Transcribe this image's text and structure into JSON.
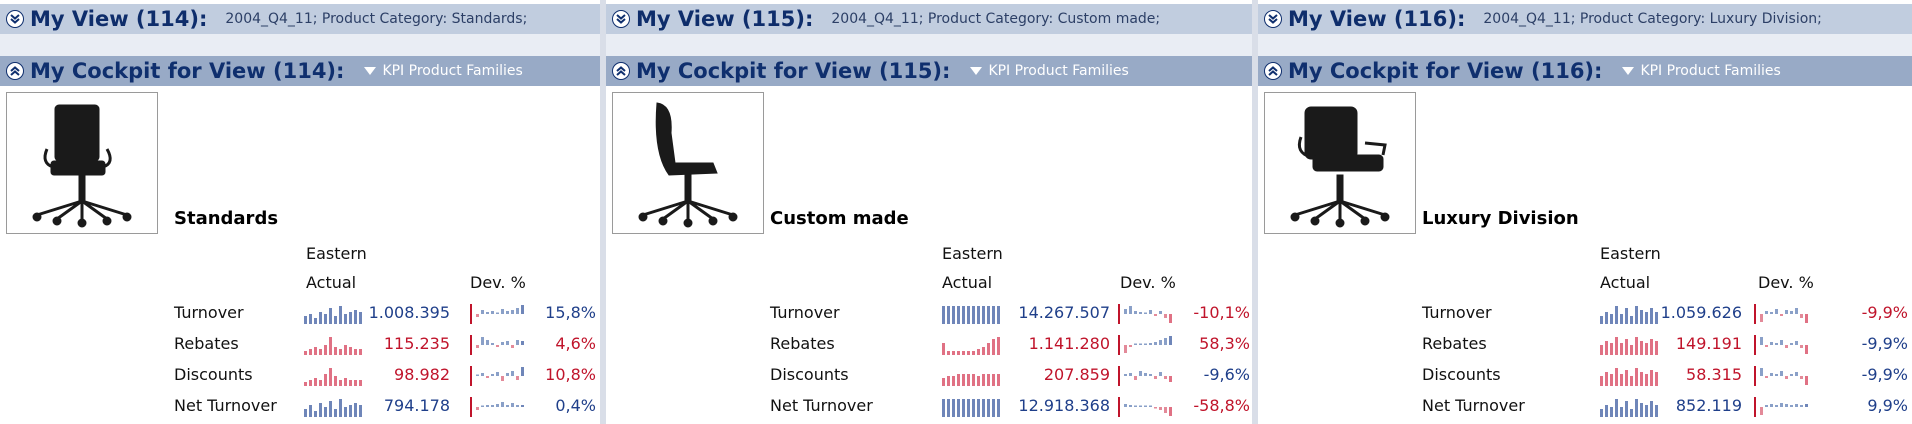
{
  "colors": {
    "view_bar": "#c1cddf",
    "cockpit_bar": "#98aac6",
    "title_text": "#0f2f6e",
    "positive_text": "#1f3f8a",
    "negative_text": "#c0142b",
    "spark_blue": "#6f86b9",
    "spark_red": "#e07184"
  },
  "icons": {
    "collapse": "double-chevron-down-icon",
    "expand": "double-chevron-up-icon",
    "dropdown": "caret-down-icon"
  },
  "panels": [
    {
      "view_title": "My View (114):",
      "view_info": "2004_Q4_11; Product Category: Standards;",
      "cockpit_title": "My Cockpit for View (114):",
      "dropdown_label": "KPI Product Families",
      "image_label": "chair-standards-image",
      "family": "Standards",
      "region": "Eastern",
      "col_actual": "Actual",
      "col_dev": "Dev. %",
      "rows": [
        {
          "label": "Turnover",
          "actual": "1.008.395",
          "dev": "15,8%",
          "actual_tone": "pos",
          "dev_tone": "pos",
          "spark_color": "blue",
          "bars": [
            0.4,
            0.5,
            0.3,
            0.6,
            0.5,
            0.8,
            0.4,
            0.9,
            0.5,
            0.6,
            0.7,
            0.6
          ],
          "devspark": [
            -0.3,
            0.4,
            0.2,
            0.3,
            0.1,
            0.5,
            0.3,
            0.4,
            0.6,
            0.9
          ]
        },
        {
          "label": "Rebates",
          "actual": "115.235",
          "dev": "4,6%",
          "actual_tone": "neg",
          "dev_tone": "neg",
          "spark_color": "red",
          "bars": [
            0.2,
            0.3,
            0.4,
            0.3,
            0.5,
            0.9,
            0.4,
            0.3,
            0.5,
            0.4,
            0.3,
            0.3
          ],
          "devspark": [
            -0.3,
            0.8,
            0.5,
            0.2,
            -0.2,
            0.3,
            0.4,
            -0.3,
            0.5,
            0.4
          ]
        },
        {
          "label": "Discounts",
          "actual": "98.982",
          "dev": "10,8%",
          "actual_tone": "neg",
          "dev_tone": "neg",
          "spark_color": "red",
          "bars": [
            0.2,
            0.3,
            0.4,
            0.3,
            0.6,
            0.9,
            0.5,
            0.3,
            0.4,
            0.3,
            0.3,
            0.3
          ],
          "devspark": [
            0.1,
            0.3,
            -0.2,
            0.2,
            0.4,
            -0.5,
            0.3,
            0.5,
            -0.4,
            0.9
          ]
        },
        {
          "label": "Net Turnover",
          "actual": "794.178",
          "dev": "0,4%",
          "actual_tone": "pos",
          "dev_tone": "pos",
          "spark_color": "blue",
          "bars": [
            0.4,
            0.6,
            0.3,
            0.7,
            0.5,
            0.8,
            0.4,
            0.9,
            0.5,
            0.6,
            0.7,
            0.6
          ],
          "devspark": [
            -0.3,
            0.1,
            0.2,
            0.2,
            0.3,
            0.5,
            0.2,
            0.4,
            0.2,
            0.2
          ]
        }
      ]
    },
    {
      "view_title": "My View (115):",
      "view_info": "2004_Q4_11; Product Category: Custom made;",
      "cockpit_title": "My Cockpit for View (115):",
      "dropdown_label": "KPI Product Families",
      "image_label": "chair-custom-made-image",
      "family": "Custom made",
      "region": "Eastern",
      "col_actual": "Actual",
      "col_dev": "Dev. %",
      "rows": [
        {
          "label": "Turnover",
          "actual": "14.267.507",
          "dev": "-10,1%",
          "actual_tone": "pos",
          "dev_tone": "neg",
          "spark_color": "blue",
          "bars": [
            0.9,
            0.9,
            0.9,
            0.9,
            0.9,
            0.9,
            0.9,
            0.9,
            0.9,
            0.9,
            0.9,
            0.9
          ],
          "devspark": [
            0.5,
            0.8,
            0.3,
            0.2,
            0.1,
            0.4,
            -0.2,
            0.3,
            -0.4,
            -0.9
          ]
        },
        {
          "label": "Rebates",
          "actual": "1.141.280",
          "dev": "58,3%",
          "actual_tone": "neg",
          "dev_tone": "neg",
          "spark_color": "red",
          "bars": [
            0.6,
            0.2,
            0.2,
            0.2,
            0.2,
            0.2,
            0.2,
            0.3,
            0.4,
            0.6,
            0.8,
            0.9
          ],
          "devspark": [
            -0.8,
            -0.2,
            0.1,
            0.1,
            0.1,
            0.2,
            0.3,
            0.5,
            0.7,
            0.9
          ]
        },
        {
          "label": "Discounts",
          "actual": "207.859",
          "dev": "-9,6%",
          "actual_tone": "neg",
          "dev_tone": "pos",
          "spark_color": "red",
          "bars": [
            0.4,
            0.5,
            0.5,
            0.6,
            0.6,
            0.6,
            0.6,
            0.5,
            0.6,
            0.6,
            0.6,
            0.6
          ],
          "devspark": [
            0.2,
            0.3,
            -0.4,
            0.5,
            0.3,
            0.2,
            -0.3,
            0.4,
            -0.3,
            -0.6
          ]
        },
        {
          "label": "Net Turnover",
          "actual": "12.918.368",
          "dev": "-58,8%",
          "actual_tone": "pos",
          "dev_tone": "neg",
          "spark_color": "blue",
          "bars": [
            0.9,
            0.9,
            0.9,
            0.9,
            0.9,
            0.9,
            0.9,
            0.9,
            0.9,
            0.9,
            0.9,
            0.9
          ],
          "devspark": [
            0.3,
            0.2,
            0.1,
            0.1,
            0.1,
            0.1,
            -0.1,
            -0.3,
            -0.6,
            -0.9
          ]
        }
      ]
    },
    {
      "view_title": "My View (116):",
      "view_info": "2004_Q4_11; Product Category: Luxury Division;",
      "cockpit_title": "My Cockpit for View (116):",
      "dropdown_label": "KPI Product Families",
      "image_label": "chair-luxury-division-image",
      "family": "Luxury Division",
      "region": "Eastern",
      "col_actual": "Actual",
      "col_dev": "Dev. %",
      "rows": [
        {
          "label": "Turnover",
          "actual": "1.059.626",
          "dev": "-9,9%",
          "actual_tone": "pos",
          "dev_tone": "neg",
          "spark_color": "blue",
          "bars": [
            0.4,
            0.6,
            0.5,
            0.9,
            0.5,
            0.8,
            0.4,
            0.9,
            0.7,
            0.6,
            0.8,
            0.6
          ],
          "devspark": [
            -0.8,
            0.3,
            0.2,
            0.5,
            -0.2,
            0.4,
            0.3,
            0.6,
            -0.4,
            -0.9
          ]
        },
        {
          "label": "Rebates",
          "actual": "149.191",
          "dev": "-9,9%",
          "actual_tone": "neg",
          "dev_tone": "pos",
          "spark_color": "red",
          "bars": [
            0.5,
            0.7,
            0.6,
            0.9,
            0.6,
            0.8,
            0.5,
            0.9,
            0.7,
            0.6,
            0.8,
            0.7
          ],
          "devspark": [
            0.8,
            -0.2,
            0.3,
            0.2,
            0.5,
            -0.3,
            0.2,
            0.4,
            -0.3,
            -0.9
          ]
        },
        {
          "label": "Discounts",
          "actual": "58.315",
          "dev": "-9,9%",
          "actual_tone": "neg",
          "dev_tone": "pos",
          "spark_color": "red",
          "bars": [
            0.5,
            0.7,
            0.6,
            0.9,
            0.6,
            0.8,
            0.5,
            0.9,
            0.7,
            0.6,
            0.8,
            0.7
          ],
          "devspark": [
            0.8,
            -0.2,
            0.3,
            0.2,
            0.5,
            -0.3,
            0.2,
            0.4,
            -0.3,
            -0.9
          ]
        },
        {
          "label": "Net Turnover",
          "actual": "852.119",
          "dev": "9,9%",
          "actual_tone": "pos",
          "dev_tone": "pos",
          "spark_color": "blue",
          "bars": [
            0.4,
            0.6,
            0.5,
            0.9,
            0.5,
            0.8,
            0.4,
            0.9,
            0.7,
            0.6,
            0.8,
            0.6
          ],
          "devspark": [
            -0.8,
            0.2,
            0.3,
            0.2,
            0.4,
            0.3,
            0.2,
            0.3,
            0.2,
            0.3
          ]
        }
      ]
    }
  ]
}
